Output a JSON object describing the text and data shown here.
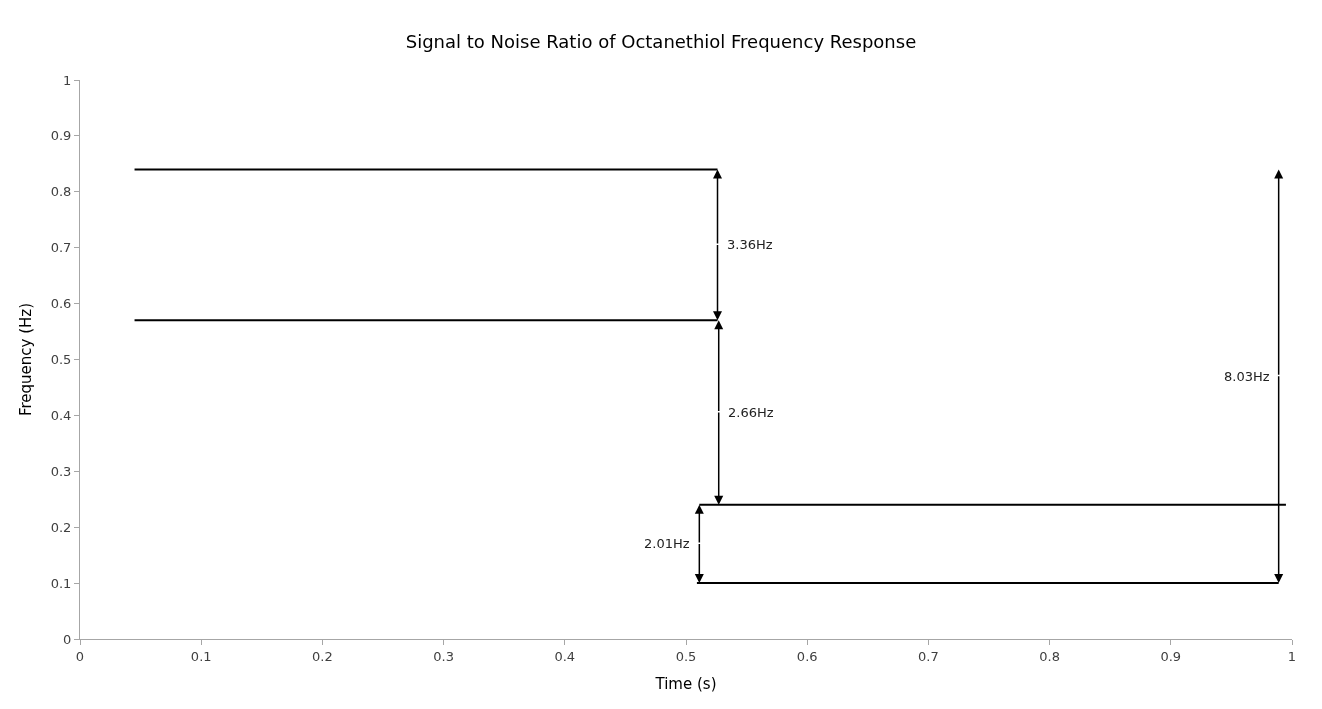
{
  "chart_data": {
    "type": "line",
    "title": "Signal to Noise Ratio of Octanethiol Frequency Response",
    "xlabel": "Time (s)",
    "ylabel": "Frequency (Hz)",
    "series": [
      {
        "color": "#000000",
        "x": [
          0.045,
          0.526
        ],
        "values": [
          0.84,
          0.84
        ]
      },
      {
        "color": "#000000",
        "x": [
          0.045,
          0.526
        ],
        "values": [
          0.57,
          0.57
        ]
      },
      {
        "color": "#000000",
        "x": [
          0.511,
          0.995
        ],
        "values": [
          0.24,
          0.24
        ]
      },
      {
        "color": "#000000",
        "x": [
          0.509,
          0.989
        ],
        "values": [
          0.1,
          0.1
        ]
      }
    ],
    "annotations": [
      {
        "text": "3.36Hz",
        "x": 0.526,
        "y": 0.57
      },
      {
        "text": "2.66Hz",
        "x": 0.527,
        "y": 0.24
      },
      {
        "text": "2.01Hz",
        "x": 0.511,
        "y": 0.1
      },
      {
        "text": "8.03Hz",
        "x": 0.989,
        "y": 0.1
      }
    ],
    "xlim": [
      0,
      1
    ],
    "xticks": [
      0,
      0.1,
      0.2,
      0.3,
      0.4,
      0.5,
      0.6,
      0.7,
      0.8,
      0.9,
      1
    ],
    "ylim": [
      0,
      1
    ],
    "yticks": [
      0,
      0.1,
      0.2,
      0.3,
      0.4,
      0.5,
      0.6,
      0.7,
      0.8,
      0.9,
      1
    ],
    "tick_labels": [
      "x",
      "y"
    ]
  }
}
